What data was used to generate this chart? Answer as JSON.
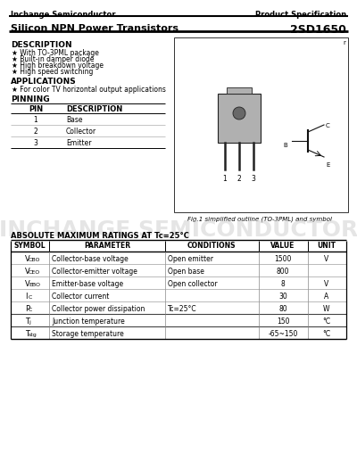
{
  "company": "Inchange Semiconductor",
  "spec_type": "Product Specification",
  "title": "Silicon NPN Power Transistors",
  "part_number": "2SD1650",
  "description_title": "DESCRIPTION",
  "description_items": [
    "★ With TO-3PML package",
    "★ Built-in damper diode",
    "★ High breakdown voltage",
    "★ High speed switching"
  ],
  "applications_title": "APPLICATIONS",
  "applications_items": [
    "★ For color TV horizontal output applications"
  ],
  "pinning_title": "PINNING",
  "pin_headers": [
    "PIN",
    "DESCRIPTION"
  ],
  "pin_rows": [
    [
      "1",
      "Base"
    ],
    [
      "2",
      "Collector"
    ],
    [
      "3",
      "Emitter"
    ]
  ],
  "fig_caption": "Fig.1 simplified outline (TO-3PML) and symbol",
  "abs_max_title": "ABSOLUTE MAXIMUM RATINGS AT",
  "abs_max_title2": "Tc=25°C",
  "table_headers": [
    "SYMBOL",
    "PARAMETER",
    "CONDITIONS",
    "VALUE",
    "UNIT"
  ],
  "row_symbols": [
    "VCBO",
    "VCEO",
    "VEBO",
    "IC",
    "PC",
    "Tj",
    "Tstg"
  ],
  "row_params": [
    "Collector-base voltage",
    "Collector-emitter voltage",
    "Emitter-base voltage",
    "Collector current",
    "Collector power dissipation",
    "Junction temperature",
    "Storage temperature"
  ],
  "row_conds": [
    "Open emitter",
    "Open base",
    "Open collector",
    "",
    "Tc=25°C",
    "",
    ""
  ],
  "row_vals": [
    "1500",
    "800",
    "8",
    "30",
    "80",
    "150",
    "-65~150"
  ],
  "row_units": [
    "V",
    "",
    "V",
    "A",
    "W",
    "°C",
    "°C"
  ],
  "watermark": "INCHANGE SEMICONDUCTOR",
  "bg_color": "#ffffff"
}
